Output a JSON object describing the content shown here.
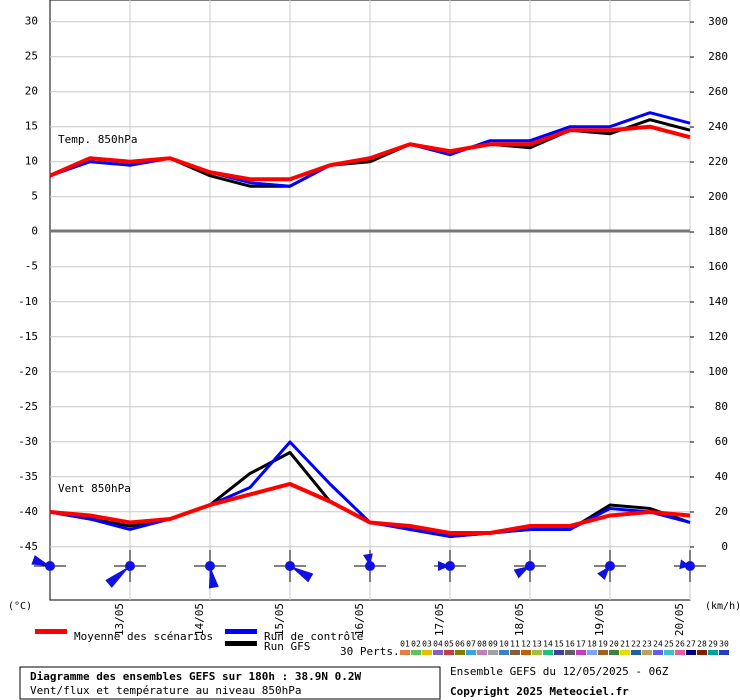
{
  "chart_data": {
    "type": "line",
    "title": "Diagramme des ensembles GEFS sur 180h : 38.9N 0.2W",
    "subtitle": "Vent/flux et température au niveau 850hPa",
    "run_info": "Ensemble GEFS du 12/05/2025 - 06Z",
    "copyright": "Copyright 2025 Meteociel.fr",
    "y_unit": "(°C)",
    "y2_unit": "(km/h)",
    "panel_labels": [
      "Temp. 850hPa",
      "Vent 850hPa"
    ],
    "x": [
      0,
      12,
      24,
      36,
      48,
      60,
      72,
      84,
      96,
      108,
      120,
      132,
      144,
      156,
      168,
      180,
      192
    ],
    "xlim": [
      0,
      192
    ],
    "xticks": [
      {
        "value": 24,
        "label": "13/05"
      },
      {
        "value": 48,
        "label": "14/05"
      },
      {
        "value": 72,
        "label": "15/05"
      },
      {
        "value": 96,
        "label": "16/05"
      },
      {
        "value": 120,
        "label": "17/05"
      },
      {
        "value": 144,
        "label": "18/05"
      },
      {
        "value": 168,
        "label": "19/05"
      },
      {
        "value": 192,
        "label": "20/05"
      }
    ],
    "ylim": [
      -52.6,
      33.1
    ],
    "yticks": [
      30,
      25,
      20,
      15,
      10,
      5,
      0,
      -5,
      -10,
      -15,
      -20,
      -25,
      -30,
      -35,
      -40,
      -45
    ],
    "y2lim": [
      -30.3,
      312.6
    ],
    "y2ticks": [
      300,
      280,
      260,
      240,
      220,
      200,
      180,
      160,
      140,
      120,
      100,
      80,
      60,
      40,
      20,
      0
    ],
    "grid": true,
    "series": [
      {
        "name": "Moyenne des scénarios",
        "color": "#ff0000",
        "temperature": [
          8,
          10.5,
          10,
          10.5,
          8.5,
          7.5,
          7.5,
          9.5,
          10.5,
          12.5,
          11.5,
          12.5,
          12.5,
          14.5,
          14.5,
          15,
          13.5
        ],
        "wind": [
          20,
          18,
          14,
          16,
          24,
          30,
          36,
          26,
          14,
          12,
          8,
          8,
          12,
          12,
          18,
          20,
          18
        ]
      },
      {
        "name": "Run de contrôle",
        "color": "#0000ff",
        "temperature": [
          8,
          10,
          9.5,
          10.5,
          8.5,
          7,
          6.5,
          9.5,
          10.5,
          12.5,
          11,
          13,
          13,
          15,
          15,
          17,
          15.5
        ],
        "wind": [
          20,
          16,
          10,
          16,
          24,
          34,
          60,
          36,
          14,
          10,
          6,
          8,
          10,
          10,
          22,
          20,
          14
        ]
      },
      {
        "name": "Run GFS",
        "color": "#000000",
        "temperature": [
          8,
          10.5,
          10,
          10.5,
          8,
          6.5,
          6.5,
          9.5,
          10,
          12.5,
          11.5,
          12.5,
          12,
          14.5,
          14,
          16,
          14.5
        ],
        "wind": [
          20,
          16,
          12,
          16,
          24,
          42,
          54,
          26,
          14,
          12,
          6,
          8,
          10,
          10,
          24,
          22,
          14
        ]
      }
    ],
    "perturbations_label": "30 Perts.",
    "perturbations": [
      {
        "name": "01",
        "color": "#e08040"
      },
      {
        "name": "02",
        "color": "#60c060"
      },
      {
        "name": "03",
        "color": "#e0c000"
      },
      {
        "name": "04",
        "color": "#8060c0"
      },
      {
        "name": "05",
        "color": "#c04040"
      },
      {
        "name": "06",
        "color": "#808000"
      },
      {
        "name": "07",
        "color": "#40a0e0"
      },
      {
        "name": "08",
        "color": "#c080c0"
      },
      {
        "name": "09",
        "color": "#a0a0a0"
      },
      {
        "name": "10",
        "color": "#4080c0"
      },
      {
        "name": "11",
        "color": "#806040"
      },
      {
        "name": "12",
        "color": "#c06000"
      },
      {
        "name": "13",
        "color": "#a0c040"
      },
      {
        "name": "14",
        "color": "#20c080"
      },
      {
        "name": "15",
        "color": "#4040a0"
      },
      {
        "name": "16",
        "color": "#606060"
      },
      {
        "name": "17",
        "color": "#c040c0"
      },
      {
        "name": "18",
        "color": "#80a0ff"
      },
      {
        "name": "19",
        "color": "#a06020"
      },
      {
        "name": "20",
        "color": "#408040"
      },
      {
        "name": "21",
        "color": "#e0e000"
      },
      {
        "name": "22",
        "color": "#2060a0"
      },
      {
        "name": "23",
        "color": "#c0a060"
      },
      {
        "name": "24",
        "color": "#6060e0"
      },
      {
        "name": "25",
        "color": "#40c0c0"
      },
      {
        "name": "26",
        "color": "#e060a0"
      },
      {
        "name": "27",
        "color": "#000080"
      },
      {
        "name": "28",
        "color": "#802000"
      },
      {
        "name": "29",
        "color": "#00a0a0"
      },
      {
        "name": "30",
        "color": "#2040c0"
      }
    ]
  }
}
